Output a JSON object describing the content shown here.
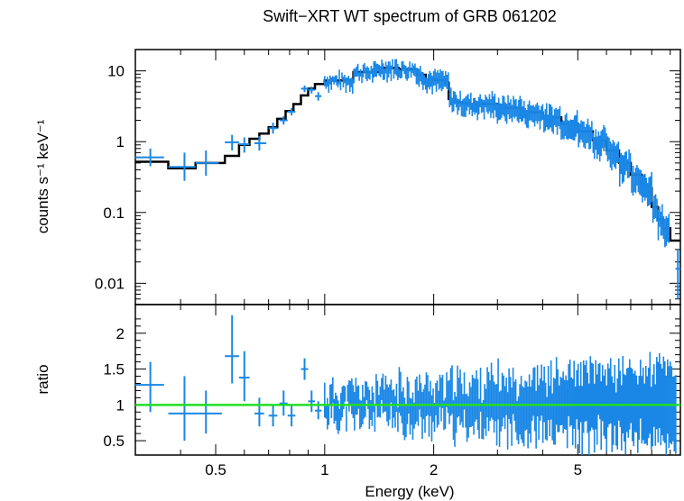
{
  "chart_data": [
    {
      "type": "scatter",
      "title": "Swift−XRT WT spectrum of GRB 061202",
      "xlabel": "",
      "ylabel": "counts s⁻¹ keV⁻¹",
      "xscale": "log",
      "yscale": "log",
      "xlim": [
        0.3,
        9.6
      ],
      "ylim": [
        0.005,
        20
      ],
      "y_ticks": [
        0.01,
        0.1,
        1,
        10
      ],
      "y_tick_labels": [
        "0.01",
        "0.1",
        "1",
        "10"
      ],
      "colors": {
        "data": "#1a87e6",
        "model": "#000000"
      },
      "series": [
        {
          "role": "data",
          "points": [
            {
              "x": 0.33,
              "xerr": [
                0.3,
                0.36
              ],
              "y": 0.6,
              "yerr": [
                0.45,
                0.8
              ]
            },
            {
              "x": 0.41,
              "xerr": [
                0.37,
                0.44
              ],
              "y": 0.44,
              "yerr": [
                0.28,
                0.7
              ]
            },
            {
              "x": 0.47,
              "xerr": [
                0.44,
                0.51
              ],
              "y": 0.5,
              "yerr": [
                0.33,
                0.75
              ]
            },
            {
              "x": 0.555,
              "xerr": [
                0.53,
                0.58
              ],
              "y": 0.98,
              "yerr": [
                0.75,
                1.25
              ]
            },
            {
              "x": 0.6,
              "xerr": [
                0.58,
                0.62
              ],
              "y": 0.92,
              "yerr": [
                0.7,
                1.15
              ]
            },
            {
              "x": 0.66,
              "xerr": [
                0.64,
                0.69
              ],
              "y": 0.95,
              "yerr": [
                0.75,
                1.2
              ]
            },
            {
              "x": 0.72,
              "xerr": [
                0.7,
                0.74
              ],
              "y": 1.55,
              "yerr": [
                1.3,
                1.85
              ]
            },
            {
              "x": 0.77,
              "xerr": [
                0.75,
                0.79
              ],
              "y": 2.0,
              "yerr": [
                1.75,
                2.3
              ]
            },
            {
              "x": 0.81,
              "xerr": [
                0.79,
                0.83
              ],
              "y": 2.65,
              "yerr": [
                2.35,
                3.0
              ]
            },
            {
              "x": 0.88,
              "xerr": [
                0.86,
                0.9
              ],
              "y": 5.6,
              "yerr": [
                5.0,
                6.2
              ]
            },
            {
              "x": 0.92,
              "xerr": [
                0.9,
                0.94
              ],
              "y": 5.4,
              "yerr": [
                4.8,
                6.0
              ]
            },
            {
              "x": 0.96,
              "xerr": [
                0.94,
                0.98
              ],
              "y": 4.4,
              "yerr": [
                3.8,
                5.0
              ]
            }
          ]
        },
        {
          "role": "model",
          "x": [
            0.3,
            0.37,
            0.44,
            0.53,
            0.58,
            0.62,
            0.66,
            0.7,
            0.74,
            0.78,
            0.82,
            0.86,
            0.9,
            0.94,
            1.0,
            1.2,
            1.4,
            1.6,
            1.8,
            1.9,
            2.0,
            2.15,
            2.2,
            2.3,
            2.4,
            2.5,
            3.0,
            3.5,
            4.0,
            4.5,
            5.0,
            5.5,
            6.0,
            6.5,
            7.0,
            7.5,
            8.0,
            8.3,
            8.6,
            9.0,
            9.6
          ],
          "y": [
            0.52,
            0.42,
            0.5,
            0.63,
            0.9,
            1.1,
            1.3,
            1.6,
            2.1,
            2.7,
            3.4,
            4.5,
            5.6,
            6.5,
            7.3,
            9.6,
            11.0,
            10.6,
            8.8,
            7.6,
            7.4,
            6.8,
            4.0,
            3.6,
            3.5,
            3.4,
            3.0,
            2.6,
            2.2,
            1.8,
            1.4,
            1.05,
            0.75,
            0.5,
            0.34,
            0.22,
            0.12,
            0.08,
            0.06,
            0.04,
            0.04
          ]
        }
      ]
    },
    {
      "type": "scatter",
      "xlabel": "Energy (keV)",
      "ylabel": "ratio",
      "xscale": "log",
      "xlim": [
        0.3,
        9.6
      ],
      "ylim": [
        0.3,
        2.4
      ],
      "x_ticks": [
        0.5,
        1,
        2,
        5
      ],
      "x_tick_labels": [
        "0.5",
        "1",
        "2",
        "5"
      ],
      "y_ticks": [
        0.5,
        1,
        1.5,
        2
      ],
      "y_tick_labels": [
        "0.5",
        "1",
        "1.5",
        "2"
      ],
      "reference_line": {
        "y": 1,
        "color": "#22dd22"
      },
      "colors": {
        "data": "#1a87e6"
      },
      "series": [
        {
          "role": "data",
          "points": [
            {
              "x": 0.33,
              "xerr": [
                0.3,
                0.36
              ],
              "y": 1.28,
              "yerr": [
                0.9,
                1.6
              ]
            },
            {
              "x": 0.41,
              "xerr": [
                0.37,
                0.45
              ],
              "y": 0.88,
              "yerr": [
                0.5,
                1.4
              ]
            },
            {
              "x": 0.47,
              "xerr": [
                0.45,
                0.52
              ],
              "y": 0.88,
              "yerr": [
                0.6,
                1.2
              ]
            },
            {
              "x": 0.555,
              "xerr": [
                0.53,
                0.58
              ],
              "y": 1.68,
              "yerr": [
                1.3,
                2.25
              ]
            },
            {
              "x": 0.6,
              "xerr": [
                0.58,
                0.62
              ],
              "y": 1.38,
              "yerr": [
                1.05,
                1.75
              ]
            },
            {
              "x": 0.66,
              "xerr": [
                0.64,
                0.68
              ],
              "y": 0.88,
              "yerr": [
                0.7,
                1.1
              ]
            },
            {
              "x": 0.72,
              "xerr": [
                0.7,
                0.74
              ],
              "y": 0.85,
              "yerr": [
                0.7,
                1.0
              ]
            },
            {
              "x": 0.77,
              "xerr": [
                0.75,
                0.79
              ],
              "y": 1.02,
              "yerr": [
                0.85,
                1.2
              ]
            },
            {
              "x": 0.81,
              "xerr": [
                0.79,
                0.83
              ],
              "y": 0.85,
              "yerr": [
                0.7,
                1.0
              ]
            },
            {
              "x": 0.88,
              "xerr": [
                0.86,
                0.9
              ],
              "y": 1.5,
              "yerr": [
                1.35,
                1.65
              ]
            },
            {
              "x": 0.92,
              "xerr": [
                0.9,
                0.94
              ],
              "y": 1.05,
              "yerr": [
                0.9,
                1.2
              ]
            },
            {
              "x": 0.96,
              "xerr": [
                0.94,
                0.98
              ],
              "y": 0.92,
              "yerr": [
                0.8,
                1.05
              ]
            }
          ]
        }
      ]
    }
  ]
}
